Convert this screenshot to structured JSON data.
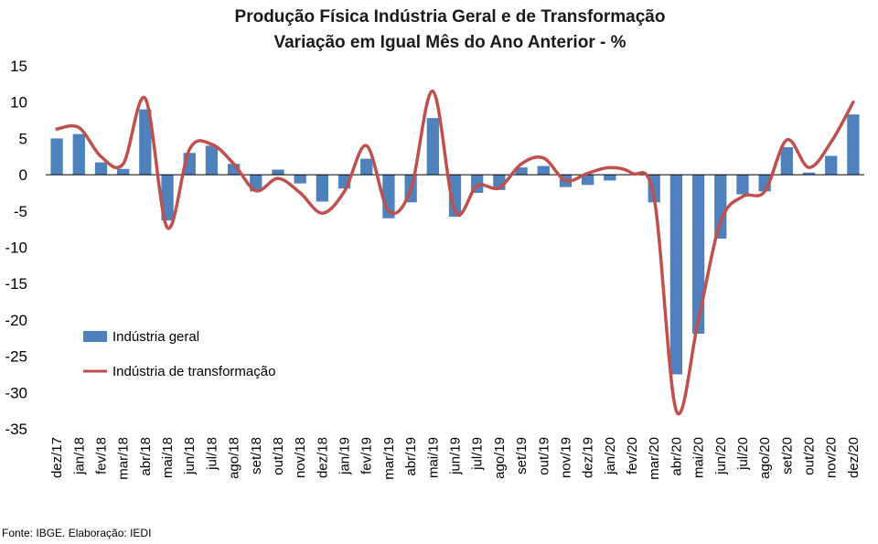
{
  "chart_data": {
    "type": "bar",
    "title": "Produção Física Indústria Geral e de Transformação",
    "subtitle": "Variação em Igual Mês do Ano Anterior - %",
    "categories": [
      "dez/17",
      "jan/18",
      "fev/18",
      "mar/18",
      "abr/18",
      "mai/18",
      "jun/18",
      "jul/18",
      "ago/18",
      "set/18",
      "out/18",
      "nov/18",
      "dez/18",
      "jan/19",
      "fev/19",
      "mar/19",
      "abr/19",
      "mai/19",
      "jun/19",
      "jul/19",
      "ago/19",
      "set/19",
      "out/19",
      "nov/19",
      "dez/19",
      "jan/20",
      "fev/20",
      "mar/20",
      "abr/20",
      "mai/20",
      "jun/20",
      "jul/20",
      "ago/20",
      "set/20",
      "out/20",
      "nov/20",
      "dez/20"
    ],
    "series": [
      {
        "name": "Indústria geral",
        "type": "bar",
        "color": "#4f81bd",
        "values": [
          5.0,
          5.6,
          1.7,
          0.8,
          9.0,
          -6.3,
          3.0,
          4.0,
          1.5,
          -2.3,
          0.7,
          -1.2,
          -3.7,
          -1.9,
          2.2,
          -6.0,
          -3.8,
          7.8,
          -5.8,
          -2.5,
          -2.1,
          1.0,
          1.2,
          -1.7,
          -1.4,
          -0.8,
          0.0,
          -3.8,
          -27.5,
          -21.9,
          -8.8,
          -2.7,
          -2.3,
          3.8,
          0.3,
          2.6,
          8.3
        ]
      },
      {
        "name": "Indústria de transformação",
        "type": "line",
        "color": "#c0504d",
        "values": [
          6.3,
          6.5,
          2.5,
          1.5,
          10.5,
          -7.3,
          3.5,
          4.2,
          1.5,
          -2.2,
          -0.5,
          -2.5,
          -5.3,
          -2.3,
          4.0,
          -5.0,
          -2.0,
          11.5,
          -5.0,
          -1.5,
          -1.8,
          1.5,
          2.3,
          -0.8,
          0.2,
          1.0,
          0.2,
          -3.2,
          -32.5,
          -20.0,
          -6.5,
          -3.0,
          -2.3,
          4.8,
          1.0,
          4.5,
          10.0
        ]
      }
    ],
    "ylim": [
      -35,
      15
    ],
    "yticks": [
      15,
      10,
      5,
      0,
      -5,
      -10,
      -15,
      -20,
      -25,
      -30,
      -35
    ],
    "grid": false,
    "legend": "left-center"
  },
  "source_note": "Fonte: IBGE. Elaboração: IEDI"
}
